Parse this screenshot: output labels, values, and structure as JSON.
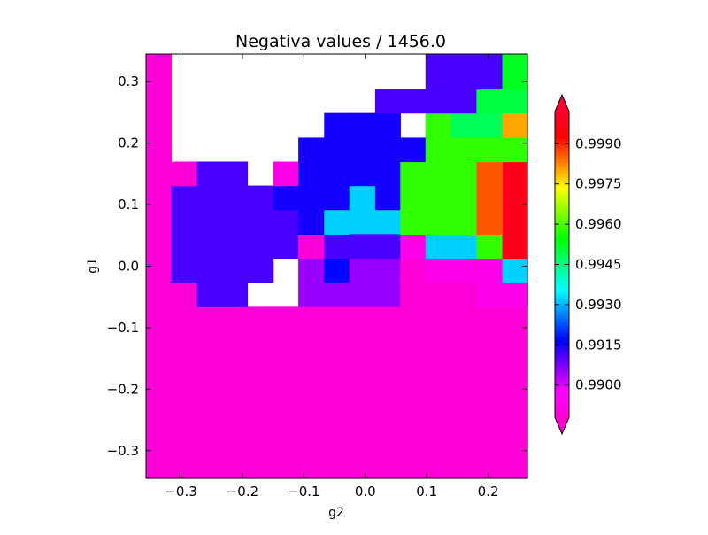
{
  "chart_data": {
    "type": "heatmap",
    "title": "Negativa values / 1456.0",
    "xlabel": "g2",
    "ylabel": "g1",
    "xlim": [
      -0.357,
      0.264
    ],
    "ylim": [
      -0.345,
      0.345
    ],
    "x_ticks": [
      -0.3,
      -0.2,
      -0.1,
      0.0,
      0.1,
      0.2
    ],
    "x_tick_labels": [
      "−0.3",
      "−0.2",
      "−0.1",
      "0.0",
      "0.1",
      "0.2"
    ],
    "y_ticks": [
      -0.3,
      -0.2,
      -0.1,
      0.0,
      0.1,
      0.2,
      0.3
    ],
    "y_tick_labels": [
      "−0.3",
      "−0.2",
      "−0.1",
      "0.0",
      "0.1",
      "0.2",
      "0.3"
    ],
    "colorbar": {
      "vmin": 0.9888,
      "vmax": 1.0002,
      "extend": "both",
      "ticks": [
        0.99,
        0.9915,
        0.993,
        0.9945,
        0.996,
        0.9975,
        0.999
      ],
      "tick_labels": [
        "0.9900",
        "0.9915",
        "0.9930",
        "0.9945",
        "0.9960",
        "0.9975",
        "0.9990"
      ],
      "colors": [
        "#ff00d4",
        "#ff00ff",
        "#7f00ff",
        "#0000ff",
        "#007fff",
        "#00ffff",
        "#00ff7f",
        "#00ff00",
        "#7fff00",
        "#ffff00",
        "#ff7f00",
        "#ff0000",
        "#ff0030"
      ]
    },
    "grid": {
      "x0": -0.357,
      "dx": 0.04141,
      "y0": -0.345,
      "dy": 0.03932,
      "rows": [
        [
          0,
          0,
          0,
          0,
          0,
          0,
          0,
          0,
          0,
          0,
          0,
          0,
          0,
          0,
          0
        ],
        [
          0,
          0,
          0,
          0,
          0,
          0,
          0,
          0,
          0,
          0,
          0,
          0,
          0,
          0,
          0
        ],
        [
          0,
          0,
          0,
          0,
          0,
          0,
          0,
          0,
          0,
          0,
          0,
          0,
          0,
          0,
          0
        ],
        [
          0,
          0,
          0,
          0,
          0,
          0,
          0,
          0,
          0,
          0,
          0,
          0,
          0,
          0,
          0
        ],
        [
          0,
          0,
          0,
          0,
          0,
          0,
          0,
          0,
          0,
          0,
          0,
          0,
          0,
          0,
          0
        ],
        [
          0,
          0,
          0,
          0,
          0,
          0,
          0,
          0,
          0,
          0,
          0,
          0,
          0,
          0,
          0
        ],
        [
          0,
          0,
          0,
          0,
          0,
          0,
          0,
          0,
          0,
          0,
          0,
          0,
          0,
          0,
          0
        ],
        [
          0,
          0,
          0,
          0,
          0,
          0,
          0,
          0,
          0,
          0,
          0,
          0,
          0,
          0,
          0
        ],
        [
          0,
          0,
          2,
          2,
          0,
          0,
          0,
          2,
          2,
          2,
          0,
          0,
          0,
          0,
          0
        ],
        [
          0,
          1,
          1,
          1,
          1,
          0,
          0,
          0,
          0,
          0,
          0,
          0,
          0,
          0,
          0
        ],
        [
          0,
          3,
          3,
          3,
          3,
          0,
          2,
          3,
          2,
          2,
          0,
          0,
          0,
          0,
          0
        ],
        [
          0,
          3,
          3,
          3,
          3,
          0,
          2,
          3,
          2,
          2,
          0,
          0,
          0,
          0,
          0
        ],
        [
          0,
          3,
          3,
          3,
          3,
          0,
          2,
          2,
          2,
          2,
          0,
          0,
          0,
          0,
          0
        ],
        [
          0,
          3,
          3,
          3,
          3,
          0,
          0,
          0,
          0,
          0,
          0,
          0,
          0,
          0,
          0
        ],
        [
          0,
          3,
          3,
          3,
          3,
          3,
          0,
          3,
          3,
          3,
          0,
          0,
          0,
          0,
          0
        ],
        [
          0,
          3,
          3,
          3,
          3,
          3,
          0,
          3,
          3,
          3,
          0,
          0,
          0,
          0,
          0
        ],
        [
          0,
          3,
          3,
          3,
          3,
          3,
          0,
          3,
          3,
          3,
          0,
          0,
          0,
          0,
          0
        ],
        [
          0,
          0,
          0,
          0,
          0,
          0,
          0,
          0,
          0,
          0,
          0,
          0,
          0,
          0,
          0
        ]
      ]
    },
    "cells": [
      {
        "x0": -0.357,
        "x1": -0.316,
        "y0": -0.345,
        "y1": 0.345,
        "c": 0.9889
      },
      {
        "x0": -0.316,
        "x1": 0.264,
        "y0": -0.345,
        "y1": -0.066,
        "c": 0.9889
      },
      {
        "x0": -0.316,
        "x1": -0.274,
        "y0": -0.066,
        "y1": -0.026,
        "c": 0.9889
      },
      {
        "x0": -0.316,
        "x1": -0.274,
        "y0": -0.026,
        "y1": 0.013,
        "c": 0.9911
      },
      {
        "x0": -0.316,
        "x1": -0.274,
        "y0": 0.013,
        "y1": 0.052,
        "c": 0.9911
      },
      {
        "x0": -0.316,
        "x1": -0.274,
        "y0": 0.052,
        "y1": 0.092,
        "c": 0.9911
      },
      {
        "x0": -0.316,
        "x1": -0.274,
        "y0": 0.092,
        "y1": 0.131,
        "c": 0.9911
      },
      {
        "x0": -0.316,
        "x1": -0.274,
        "y0": 0.131,
        "y1": 0.17,
        "c": 0.9889
      },
      {
        "x0": -0.274,
        "x1": -0.192,
        "y0": -0.066,
        "y1": 0.17,
        "c": 0.9911
      },
      {
        "x0": -0.192,
        "x1": -0.15,
        "y0": -0.026,
        "y1": 0.131,
        "c": 0.9911
      },
      {
        "x0": -0.15,
        "x1": -0.109,
        "y0": 0.013,
        "y1": 0.092,
        "c": 0.9911
      },
      {
        "x0": -0.15,
        "x1": -0.109,
        "y0": 0.092,
        "y1": 0.131,
        "c": 0.9915
      },
      {
        "x0": -0.15,
        "x1": -0.109,
        "y0": 0.131,
        "y1": 0.17,
        "c": 0.9893
      },
      {
        "x0": -0.109,
        "x1": -0.067,
        "y0": -0.066,
        "y1": -0.026,
        "c": 0.9905
      },
      {
        "x0": -0.109,
        "x1": -0.067,
        "y0": -0.026,
        "y1": 0.013,
        "c": 0.9905
      },
      {
        "x0": -0.109,
        "x1": -0.067,
        "y0": 0.013,
        "y1": 0.052,
        "c": 0.9889
      },
      {
        "x0": -0.109,
        "x1": -0.067,
        "y0": 0.052,
        "y1": 0.092,
        "c": 0.9915
      },
      {
        "x0": -0.109,
        "x1": -0.067,
        "y0": 0.092,
        "y1": 0.131,
        "c": 0.9915
      },
      {
        "x0": -0.109,
        "x1": -0.067,
        "y0": 0.131,
        "y1": 0.209,
        "c": 0.9915
      },
      {
        "x0": -0.067,
        "x1": -0.026,
        "y0": -0.066,
        "y1": -0.026,
        "c": 0.9905
      },
      {
        "x0": -0.067,
        "x1": -0.026,
        "y0": -0.026,
        "y1": 0.013,
        "c": 0.9917
      },
      {
        "x0": -0.067,
        "x1": -0.026,
        "y0": 0.013,
        "y1": 0.052,
        "c": 0.9911
      },
      {
        "x0": -0.067,
        "x1": 0.057,
        "y0": 0.052,
        "y1": 0.092,
        "c": 0.9932
      },
      {
        "x0": -0.067,
        "x1": -0.026,
        "y0": 0.092,
        "y1": 0.131,
        "c": 0.9915
      },
      {
        "x0": -0.067,
        "x1": -0.026,
        "y0": 0.131,
        "y1": 0.249,
        "c": 0.9915
      },
      {
        "x0": -0.026,
        "x1": 0.057,
        "y0": -0.066,
        "y1": -0.026,
        "c": 0.9905
      },
      {
        "x0": -0.026,
        "x1": 0.057,
        "y0": -0.026,
        "y1": 0.013,
        "c": 0.9905
      },
      {
        "x0": -0.026,
        "x1": 0.057,
        "y0": 0.013,
        "y1": 0.052,
        "c": 0.9911
      },
      {
        "x0": -0.026,
        "x1": 0.016,
        "y0": 0.092,
        "y1": 0.131,
        "c": 0.9932
      },
      {
        "x0": 0.016,
        "x1": 0.057,
        "y0": 0.092,
        "y1": 0.131,
        "c": 0.9915
      },
      {
        "x0": -0.026,
        "x1": 0.057,
        "y0": 0.131,
        "y1": 0.249,
        "c": 0.9915
      },
      {
        "x0": 0.057,
        "x1": 0.264,
        "y0": -0.066,
        "y1": -0.026,
        "c": 0.9889
      },
      {
        "x0": 0.057,
        "x1": 0.098,
        "y0": -0.026,
        "y1": 0.013,
        "c": 0.9889
      },
      {
        "x0": 0.098,
        "x1": 0.181,
        "y0": -0.026,
        "y1": 0.013,
        "c": 0.9893
      },
      {
        "x0": 0.181,
        "x1": 0.223,
        "y0": -0.066,
        "y1": 0.013,
        "c": 0.9893
      },
      {
        "x0": 0.223,
        "x1": 0.264,
        "y0": -0.066,
        "y1": -0.026,
        "c": 0.9893
      },
      {
        "x0": 0.223,
        "x1": 0.264,
        "y0": -0.026,
        "y1": 0.013,
        "c": 0.9932
      },
      {
        "x0": 0.057,
        "x1": 0.098,
        "y0": 0.013,
        "y1": 0.052,
        "c": 0.9893
      },
      {
        "x0": 0.098,
        "x1": 0.181,
        "y0": 0.013,
        "y1": 0.052,
        "c": 0.9932
      },
      {
        "x0": 0.181,
        "x1": 0.223,
        "y0": 0.013,
        "y1": 0.052,
        "c": 0.9958
      },
      {
        "x0": 0.223,
        "x1": 0.264,
        "y0": 0.013,
        "y1": 0.17,
        "c": 0.9998
      },
      {
        "x0": 0.057,
        "x1": 0.181,
        "y0": 0.052,
        "y1": 0.17,
        "c": 0.9958
      },
      {
        "x0": 0.181,
        "x1": 0.223,
        "y0": 0.052,
        "y1": 0.17,
        "c": 0.9986
      },
      {
        "x0": 0.057,
        "x1": 0.098,
        "y0": 0.17,
        "y1": 0.209,
        "c": 0.9915
      },
      {
        "x0": 0.098,
        "x1": 0.14,
        "y0": 0.17,
        "y1": 0.249,
        "c": 0.9958
      },
      {
        "x0": 0.14,
        "x1": 0.223,
        "y0": 0.209,
        "y1": 0.249,
        "c": 0.9948
      },
      {
        "x0": 0.223,
        "x1": 0.264,
        "y0": 0.209,
        "y1": 0.249,
        "c": 0.998
      },
      {
        "x0": 0.14,
        "x1": 0.264,
        "y0": 0.17,
        "y1": 0.209,
        "c": 0.9958
      },
      {
        "x0": 0.016,
        "x1": 0.14,
        "y0": 0.249,
        "y1": 0.288,
        "c": 0.9911
      },
      {
        "x0": 0.14,
        "x1": 0.181,
        "y0": 0.249,
        "y1": 0.288,
        "c": 0.9911
      },
      {
        "x0": 0.181,
        "x1": 0.264,
        "y0": 0.249,
        "y1": 0.288,
        "c": 0.995
      },
      {
        "x0": 0.098,
        "x1": 0.223,
        "y0": 0.288,
        "y1": 0.345,
        "c": 0.9911
      },
      {
        "x0": 0.223,
        "x1": 0.264,
        "y0": 0.288,
        "y1": 0.345,
        "c": 0.9952
      }
    ]
  }
}
